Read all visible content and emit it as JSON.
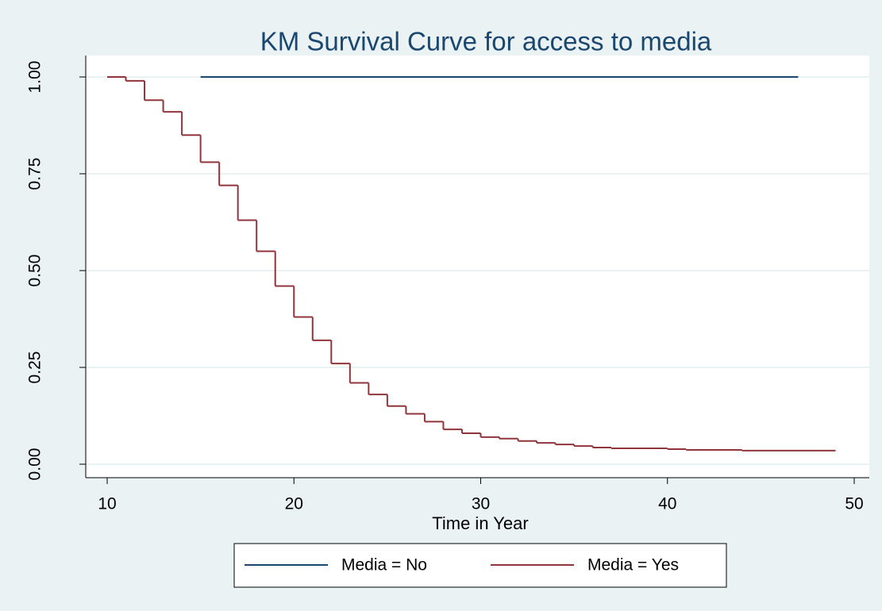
{
  "chart_data": {
    "type": "step",
    "title": "KM Survival Curve for access to media",
    "x_label": "Time in Year",
    "xlim": [
      10,
      50
    ],
    "xticks": [
      10,
      20,
      30,
      40,
      50
    ],
    "ylim": [
      0,
      1
    ],
    "yticks": [
      {
        "value": 0,
        "label": "0.00"
      },
      {
        "value": 0.25,
        "label": "0.25"
      },
      {
        "value": 0.5,
        "label": "0.50"
      },
      {
        "value": 0.75,
        "label": "0.75"
      },
      {
        "value": 1,
        "label": "1.00"
      }
    ],
    "grid": true,
    "series": [
      {
        "name": "Media = No",
        "color": "#1a476f",
        "x": [
          15,
          47
        ],
        "values": [
          1,
          1
        ]
      },
      {
        "name": "Media = Yes",
        "color": "#90353b",
        "x": [
          10,
          11,
          12,
          13,
          14,
          15,
          16,
          17,
          18,
          19,
          20,
          21,
          22,
          23,
          24,
          25,
          26,
          27,
          28,
          29,
          30,
          31,
          32,
          33,
          34,
          35,
          36,
          37,
          40,
          41,
          44,
          49
        ],
        "values": [
          1,
          0.99,
          0.94,
          0.91,
          0.85,
          0.78,
          0.72,
          0.63,
          0.55,
          0.46,
          0.38,
          0.32,
          0.26,
          0.21,
          0.18,
          0.15,
          0.13,
          0.11,
          0.09,
          0.08,
          0.07,
          0.066,
          0.06,
          0.055,
          0.051,
          0.047,
          0.043,
          0.041,
          0.039,
          0.037,
          0.035,
          0.035
        ]
      }
    ]
  }
}
